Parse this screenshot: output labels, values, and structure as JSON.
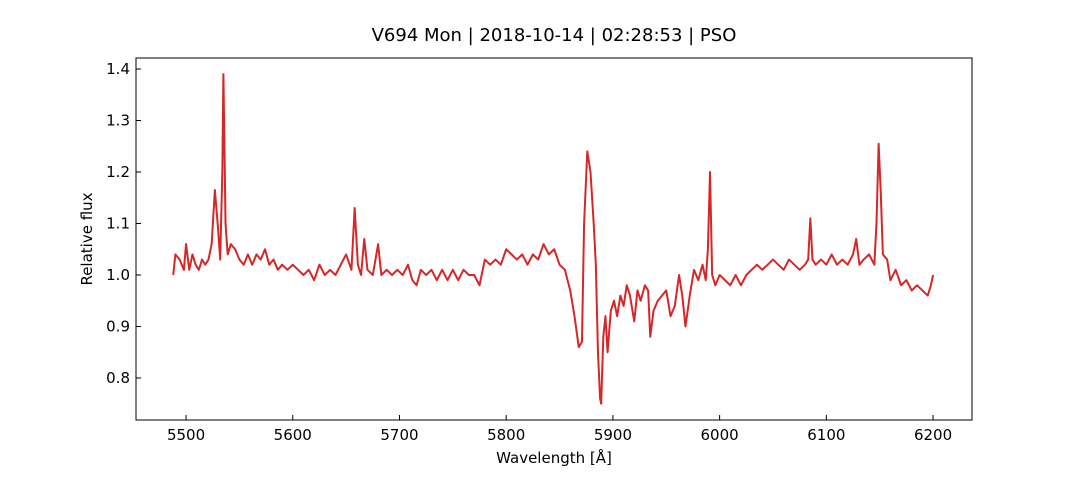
{
  "chart_data": {
    "type": "line",
    "title": "V694 Mon | 2018-10-14 | 02:28:53 | PSO",
    "xlabel": "Wavelength [Å]",
    "ylabel": "Relative flux",
    "color": "#d62728",
    "x": [
      5488,
      5490,
      5494,
      5498,
      5500,
      5503,
      5506,
      5509,
      5512,
      5515,
      5518,
      5521,
      5524,
      5527,
      5530,
      5532,
      5534,
      5535,
      5537,
      5539,
      5542,
      5546,
      5550,
      5554,
      5558,
      5562,
      5566,
      5570,
      5574,
      5578,
      5582,
      5586,
      5590,
      5595,
      5600,
      5605,
      5610,
      5615,
      5620,
      5625,
      5630,
      5635,
      5640,
      5645,
      5650,
      5655,
      5658,
      5661,
      5664,
      5667,
      5670,
      5675,
      5680,
      5683,
      5688,
      5693,
      5698,
      5703,
      5708,
      5712,
      5716,
      5720,
      5725,
      5730,
      5735,
      5740,
      5745,
      5750,
      5755,
      5760,
      5765,
      5770,
      5775,
      5780,
      5785,
      5790,
      5795,
      5800,
      5805,
      5810,
      5815,
      5820,
      5825,
      5830,
      5835,
      5840,
      5845,
      5850,
      5855,
      5860,
      5864,
      5868,
      5871,
      5873,
      5876,
      5879,
      5882,
      5884,
      5886,
      5888,
      5889,
      5891,
      5893,
      5895,
      5898,
      5901,
      5904,
      5907,
      5910,
      5913,
      5916,
      5920,
      5923,
      5926,
      5930,
      5933,
      5935,
      5938,
      5942,
      5946,
      5950,
      5954,
      5958,
      5962,
      5965,
      5968,
      5972,
      5976,
      5980,
      5984,
      5987,
      5989,
      5991,
      5993,
      5996,
      6000,
      6005,
      6010,
      6015,
      6020,
      6025,
      6030,
      6035,
      6040,
      6045,
      6050,
      6055,
      6060,
      6065,
      6070,
      6075,
      6080,
      6083,
      6085,
      6087,
      6090,
      6095,
      6100,
      6105,
      6110,
      6115,
      6120,
      6125,
      6128,
      6131,
      6135,
      6140,
      6145,
      6147,
      6149,
      6151,
      6153,
      6157,
      6160,
      6165,
      6170,
      6175,
      6180,
      6185,
      6190,
      6195,
      6198,
      6200
    ],
    "values": [
      1.0,
      1.04,
      1.03,
      1.01,
      1.06,
      1.01,
      1.04,
      1.02,
      1.01,
      1.03,
      1.02,
      1.03,
      1.06,
      1.165,
      1.09,
      1.03,
      1.2,
      1.39,
      1.1,
      1.04,
      1.06,
      1.05,
      1.03,
      1.02,
      1.04,
      1.02,
      1.04,
      1.03,
      1.05,
      1.02,
      1.03,
      1.01,
      1.02,
      1.01,
      1.02,
      1.01,
      1.0,
      1.01,
      0.99,
      1.02,
      1.0,
      1.01,
      1.0,
      1.02,
      1.04,
      1.01,
      1.13,
      1.02,
      1.0,
      1.07,
      1.01,
      1.0,
      1.06,
      1.0,
      1.01,
      1.0,
      1.01,
      1.0,
      1.02,
      0.99,
      0.98,
      1.01,
      1.0,
      1.01,
      0.99,
      1.01,
      0.99,
      1.01,
      0.99,
      1.01,
      1.0,
      1.0,
      0.98,
      1.03,
      1.02,
      1.03,
      1.02,
      1.05,
      1.04,
      1.03,
      1.04,
      1.02,
      1.04,
      1.03,
      1.06,
      1.04,
      1.05,
      1.02,
      1.01,
      0.97,
      0.92,
      0.86,
      0.87,
      1.1,
      1.24,
      1.2,
      1.1,
      1.02,
      0.85,
      0.76,
      0.75,
      0.88,
      0.92,
      0.85,
      0.93,
      0.95,
      0.92,
      0.96,
      0.94,
      0.98,
      0.96,
      0.91,
      0.97,
      0.95,
      0.98,
      0.97,
      0.88,
      0.93,
      0.95,
      0.96,
      0.97,
      0.92,
      0.94,
      1.0,
      0.96,
      0.9,
      0.96,
      1.01,
      0.99,
      1.02,
      0.99,
      1.05,
      1.2,
      1.0,
      0.98,
      1.0,
      0.99,
      0.98,
      1.0,
      0.98,
      1.0,
      1.01,
      1.02,
      1.01,
      1.02,
      1.03,
      1.02,
      1.01,
      1.03,
      1.02,
      1.01,
      1.02,
      1.03,
      1.11,
      1.03,
      1.02,
      1.03,
      1.02,
      1.04,
      1.02,
      1.03,
      1.02,
      1.04,
      1.07,
      1.02,
      1.03,
      1.04,
      1.02,
      1.1,
      1.255,
      1.16,
      1.04,
      1.03,
      0.99,
      1.01,
      0.98,
      0.99,
      0.97,
      0.98,
      0.97,
      0.96,
      0.98,
      1.0
    ],
    "xlim": [
      5453.1,
      6236.5
    ],
    "ylim": [
      0.7184,
      1.4214
    ],
    "xticks": [
      5500,
      5600,
      5700,
      5800,
      5900,
      6000,
      6100,
      6200
    ],
    "yticks": [
      0.8,
      0.9,
      {
        "value": 1.0,
        "label": "1.0"
      },
      1.1,
      1.2,
      1.3,
      1.4
    ]
  }
}
